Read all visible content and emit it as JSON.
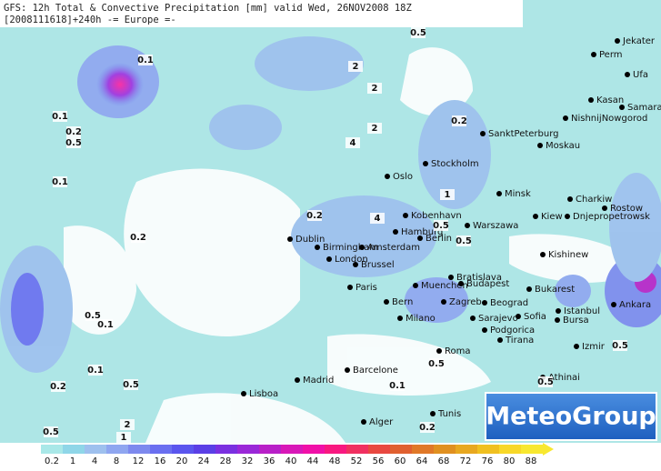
{
  "header": {
    "line1": "GFS: 12h Total & Convective Precipitation [mm] valid Wed, 26NOV2008 18Z",
    "line2": "[2008111618]+240h -= Europe =-"
  },
  "cities": [
    "Jekater",
    "Perm",
    "Ufa",
    "Kasan",
    "Samara",
    "NishnijNowgorod",
    "Moskau",
    "SanktPeterburg",
    "Oslo",
    "Stockholm",
    "Minsk",
    "Charkiw",
    "Rostow",
    "Kiew",
    "Dnjepropetrowsk",
    "Kobenhavn",
    "Hamburg",
    "Berlin",
    "Warszawa",
    "Dublin",
    "Birmingham",
    "Amsterdam",
    "London",
    "Brussel",
    "Kishinew",
    "Paris",
    "Muenchen",
    "Bratislava",
    "Budapest",
    "Bukarest",
    "Bern",
    "Milano",
    "Zagreb",
    "Beograd",
    "Sarajevo",
    "Sofia",
    "Istanbul",
    "Ankara",
    "Bursa",
    "Podgorica",
    "Tirana",
    "Roma",
    "Izmir",
    "Athinai",
    "Madrid",
    "Barcelone",
    "Lisboa",
    "Alger",
    "Tunis"
  ],
  "contour_labels": [
    "0.1",
    "0.1",
    "0.2",
    "0.5",
    "0.1",
    "0.2",
    "2",
    "2",
    "4",
    "2",
    "0.2",
    "0.2",
    "0.5",
    "0.5",
    "0.5",
    "0.1",
    "0.1",
    "0.5",
    "0.2",
    "0.5",
    "2",
    "1",
    "0.5",
    "0.1",
    "0.2",
    "0.5",
    "0.5",
    "0.5",
    "1",
    "4"
  ],
  "legend": {
    "labels": [
      0.2,
      1,
      4,
      8,
      12,
      16,
      20,
      24,
      28,
      32,
      36,
      40,
      44,
      48,
      52,
      56,
      60,
      64,
      68,
      72,
      76,
      80,
      88
    ],
    "colors": [
      "#a9e8e8",
      "#8fd6e8",
      "#9ec0ee",
      "#8fa6f0",
      "#7d89ee",
      "#6a6ff0",
      "#5a55ee",
      "#5a3fe6",
      "#7a30e0",
      "#9a28d8",
      "#b820c8",
      "#d818b8",
      "#f010a8",
      "#f81880",
      "#f03060",
      "#e84840",
      "#e06030",
      "#e07828",
      "#e09020",
      "#e8a820",
      "#f0c020",
      "#f8d828",
      "#f8e830"
    ]
  },
  "logo": "MeteoGroup"
}
